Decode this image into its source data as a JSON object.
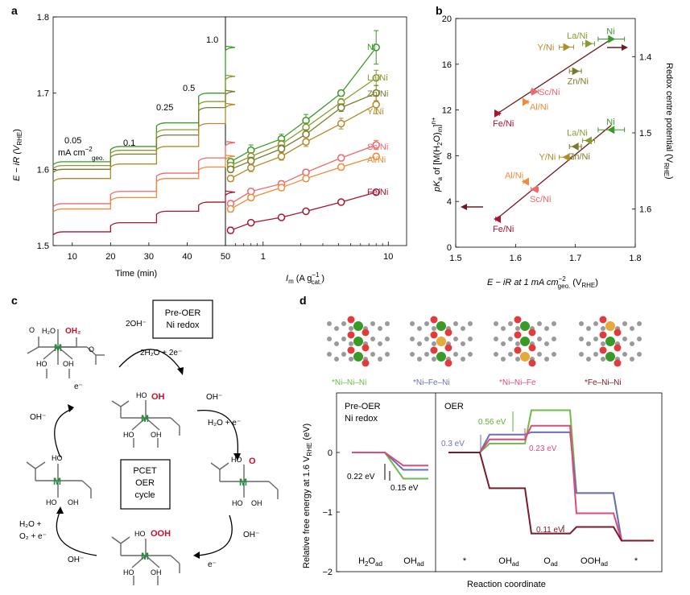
{
  "colors": {
    "Ni": "#3a9a28",
    "LaNi": "#8a9a30",
    "ZnNi": "#7a7a28",
    "YNi": "#b38a2a",
    "ScNi": "#f0686a",
    "AlNi": "#f28a3a",
    "FeNi": "#a81530",
    "dark": "#6e1a20",
    "NiNiNi": "#6dbb48",
    "NiFeNi": "#6a6fba",
    "NiNiFe": "#e0487a",
    "FeNiNi": "#7a1a28"
  },
  "chart_data": [
    {
      "panel": "a-left",
      "type": "line",
      "panel_label": "a",
      "xlabel": "Time (min)",
      "ylabel": "E − iR (V",
      "ylabel_sub": "RHE",
      "ylabel_close": ")",
      "xlim": [
        5,
        50
      ],
      "ylim": [
        1.5,
        1.8
      ],
      "xticks": [
        "10",
        "20",
        "30",
        "40",
        "50"
      ],
      "yticks": [
        "1.5",
        "1.6",
        "1.7",
        "1.8"
      ],
      "segment_times": [
        5,
        20,
        32,
        43,
        50
      ],
      "step_labels": [
        "0.05",
        "mA cm",
        "−2",
        "geo.",
        "0.1",
        "0.25",
        "0.5",
        "1.0"
      ],
      "series": [
        {
          "name": "Ni",
          "key": "Ni",
          "values": [
            1.61,
            1.63,
            1.661,
            1.7,
            1.76
          ]
        },
        {
          "name": "La/Ni",
          "key": "LaNi",
          "values": [
            1.605,
            1.625,
            1.652,
            1.689,
            1.722
          ]
        },
        {
          "name": "Zn/Ni",
          "key": "ZnNi",
          "values": [
            1.6,
            1.62,
            1.645,
            1.681,
            1.702
          ]
        },
        {
          "name": "Y/Ni",
          "key": "YNi",
          "values": [
            1.588,
            1.607,
            1.63,
            1.66,
            1.685
          ]
        },
        {
          "name": "Sc/Ni",
          "key": "ScNi",
          "values": [
            1.555,
            1.571,
            1.595,
            1.615,
            1.635
          ]
        },
        {
          "name": "Al/Ni",
          "key": "AlNi",
          "values": [
            1.548,
            1.563,
            1.588,
            1.603,
            1.617
          ]
        },
        {
          "name": "Fe/Ni",
          "key": "FeNi",
          "values": [
            1.518,
            1.53,
            1.545,
            1.557,
            1.57
          ]
        }
      ]
    },
    {
      "panel": "a-right",
      "type": "line",
      "xlabel": "I",
      "xlabel_sub": "m",
      "xlabel_rest": " (A g",
      "xlabel_sup": "−1",
      "xlabel_sub2": "cat.",
      "xlabel_close": ")",
      "xscale": "log",
      "xlim": [
        0.5,
        14
      ],
      "ylim": [
        1.5,
        1.8
      ],
      "xticks": [
        "1",
        "10"
      ],
      "x": [
        0.55,
        0.8,
        1.4,
        2.2,
        4.2,
        8.0
      ],
      "series": [
        {
          "name": "Ni",
          "key": "Ni",
          "values": [
            1.61,
            1.625,
            1.64,
            1.664,
            1.7,
            1.76
          ],
          "err": [
            0.004,
            0.007,
            0.006,
            0.008,
            0.004,
            0.022
          ]
        },
        {
          "name": "La/Ni",
          "key": "LaNi",
          "values": [
            1.605,
            1.617,
            1.633,
            1.655,
            1.688,
            1.72
          ],
          "err": [
            0.004,
            0.005,
            0.005,
            0.006,
            0.005,
            0.01
          ]
        },
        {
          "name": "Zn/Ni",
          "key": "ZnNi",
          "values": [
            1.6,
            1.611,
            1.627,
            1.646,
            1.681,
            1.7
          ],
          "err": [
            0.004,
            0.005,
            0.005,
            0.006,
            0.005,
            0.01
          ]
        },
        {
          "name": "Y/Ni",
          "key": "YNi",
          "values": [
            1.588,
            1.602,
            1.617,
            1.636,
            1.66,
            1.685
          ],
          "err": [
            0.004,
            0.005,
            0.005,
            0.006,
            0.007,
            0.012
          ]
        },
        {
          "name": "Sc/Ni",
          "key": "ScNi",
          "values": [
            1.555,
            1.571,
            1.581,
            1.596,
            1.615,
            1.632
          ],
          "err": [
            0.004,
            0.004,
            0.004,
            0.004,
            0.004,
            0.006
          ]
        },
        {
          "name": "Al/Ni",
          "key": "AlNi",
          "values": [
            1.548,
            1.563,
            1.576,
            1.588,
            1.603,
            1.617
          ],
          "err": [
            0.004,
            0.004,
            0.004,
            0.004,
            0.004,
            0.004
          ]
        },
        {
          "name": "Fe/Ni",
          "key": "FeNi",
          "values": [
            1.52,
            1.53,
            1.537,
            1.545,
            1.557,
            1.57
          ],
          "err": [
            0.004,
            0.003,
            0.003,
            0.003,
            0.003,
            0.003
          ]
        }
      ]
    },
    {
      "panel": "b",
      "type": "scatter",
      "panel_label": "b",
      "xlabel": "E − iR at 1 mA cm",
      "xlabel_sup": "−2",
      "xlabel_sub": "geo.",
      "xlabel_rest": " (V",
      "xlabel_sub2": "RHE",
      "xlabel_close": ")",
      "ylabel_left": "pK",
      "ylabel_left_sub": "a",
      "ylabel_left_rest": " of [M(H",
      "ylabel_left_sub2": "2",
      "ylabel_left_rest2": "O)",
      "ylabel_left_sub3": "m",
      "ylabel_left_sup": "n+",
      "ylabel_left_close": "]",
      "ylabel_right": "Redox centre potential (V",
      "ylabel_right_sub": "RHE",
      "ylabel_right_close": ")",
      "xlim": [
        1.5,
        1.8
      ],
      "ylim_left": [
        0,
        20
      ],
      "ylim_right": [
        1.65,
        1.35
      ],
      "xticks": [
        "1.5",
        "1.6",
        "1.7",
        "1.8"
      ],
      "yticks_left": [
        "0",
        "4",
        "8",
        "12",
        "16",
        "20"
      ],
      "yticks_right": [
        "1.4",
        "1.5",
        "1.6"
      ],
      "pka_points": [
        {
          "label": "Ni",
          "key": "Ni",
          "x": 1.76,
          "y": 18.2,
          "xerr": 0.022
        },
        {
          "label": "La/Ni",
          "key": "LaNi",
          "x": 1.722,
          "y": 17.8,
          "xerr": 0.01
        },
        {
          "label": "Y/Ni",
          "key": "YNi",
          "x": 1.685,
          "y": 17.5,
          "xerr": 0.012
        },
        {
          "label": "Zn/Ni",
          "key": "ZnNi",
          "x": 1.7,
          "y": 15.4,
          "xerr": 0.01
        },
        {
          "label": "Sc/Ni",
          "key": "ScNi",
          "x": 1.632,
          "y": 13.6,
          "xerr": 0.006
        },
        {
          "label": "Al/Ni",
          "key": "AlNi",
          "x": 1.617,
          "y": 12.7,
          "xerr": 0.004
        },
        {
          "label": "Fe/Ni",
          "key": "FeNi",
          "x": 1.57,
          "y": 11.7,
          "xerr": 0.003
        }
      ],
      "redox_points": [
        {
          "label": "Ni",
          "key": "Ni",
          "x": 1.76,
          "y": 1.496,
          "xerr": 0.022
        },
        {
          "label": "La/Ni",
          "key": "LaNi",
          "x": 1.722,
          "y": 1.51,
          "xerr": 0.01
        },
        {
          "label": "Y/Ni",
          "key": "YNi",
          "x": 1.685,
          "y": 1.532,
          "xerr": 0.012
        },
        {
          "label": "Zn/Ni",
          "key": "ZnNi",
          "x": 1.7,
          "y": 1.518,
          "xerr": 0.01
        },
        {
          "label": "Al/Ni",
          "key": "AlNi",
          "x": 1.617,
          "y": 1.564,
          "xerr": 0.004
        },
        {
          "label": "Sc/Ni",
          "key": "ScNi",
          "x": 1.632,
          "y": 1.574,
          "xerr": 0.006
        },
        {
          "label": "Fe/Ni",
          "key": "FeNi",
          "x": 1.57,
          "y": 1.613,
          "xerr": 0.003
        }
      ],
      "pka_fit": [
        [
          1.57,
          11.7
        ],
        [
          1.76,
          18.2
        ]
      ],
      "redox_fit": [
        [
          1.57,
          1.612
        ],
        [
          1.76,
          1.49
        ]
      ]
    },
    {
      "panel": "d",
      "type": "line",
      "panel_label": "d",
      "xlabel": "Reaction coordinate",
      "ylabel": "Relative free energy at 1.6 V",
      "ylabel_sub": "RHE",
      "ylabel_rest": " (eV)",
      "ylim": [
        -2,
        1
      ],
      "yticks": [
        "−2",
        "−1",
        "0"
      ],
      "left_title": [
        "Pre-OER",
        "Ni redox"
      ],
      "right_title": "OER",
      "left_categories": [
        {
          "t": "H",
          "s": "2",
          "t2": "O",
          "s2": "ad"
        },
        {
          "t": "OH",
          "s": "ad"
        }
      ],
      "right_categories": [
        {
          "t": "*"
        },
        {
          "t": "OH",
          "s": "ad"
        },
        {
          "t": "O",
          "s": "ad"
        },
        {
          "t": "OOH",
          "s": "ad"
        },
        {
          "t": "*"
        }
      ],
      "legend": [
        "*Ni–Ni–Ni",
        "*Ni–Fe–Ni",
        "*Ni–Ni–Fe",
        "*Fe–Ni–Ni"
      ],
      "legend_keys": [
        "NiNiNi",
        "NiFeNi",
        "NiNiFe",
        "FeNiNi"
      ],
      "left_series": [
        {
          "name": "*Ni–Ni–Ni",
          "key": "NiNiNi",
          "values": [
            0.0,
            -0.44
          ]
        },
        {
          "name": "*Ni–Fe–Ni",
          "key": "NiFeNi",
          "values": [
            0.0,
            -0.29
          ]
        },
        {
          "name": "*Ni–Ni–Fe",
          "key": "NiNiFe",
          "values": [
            0.0,
            -0.22
          ]
        }
      ],
      "right_series": [
        {
          "name": "*Ni–Ni–Ni",
          "key": "NiNiNi",
          "values": [
            0.0,
            0.15,
            0.71,
            -0.68,
            -1.48
          ]
        },
        {
          "name": "*Ni–Fe–Ni",
          "key": "NiFeNi",
          "values": [
            0.0,
            0.3,
            0.34,
            -0.68,
            -1.48
          ]
        },
        {
          "name": "*Ni–Ni–Fe",
          "key": "NiNiFe",
          "values": [
            0.0,
            0.22,
            0.45,
            -1.02,
            -1.48
          ]
        },
        {
          "name": "*Fe–Ni–Ni",
          "key": "FeNiNi",
          "values": [
            0.0,
            -0.6,
            -1.36,
            -1.25,
            -1.48
          ]
        }
      ],
      "annotations": [
        "0.22 eV",
        "0.15 eV",
        "0.56 eV",
        "0.3 eV",
        "0.23 eV",
        "0.11 eV"
      ]
    }
  ],
  "panel_c": {
    "panel_label": "c",
    "box_preoer": [
      "Pre-OER",
      "Ni redox"
    ],
    "box_pcet": [
      "PCET",
      "OER",
      "cycle"
    ],
    "metal": "M",
    "ligands": {
      "h2o": "H₂O",
      "oh2": "OH₂",
      "oh": "OH",
      "ho": "HO",
      "o": "O",
      "ooh": "OOH"
    },
    "species": [
      "2OH⁻",
      "2H₂O + 2e⁻",
      "e⁻",
      "OH⁻",
      "OH⁻",
      "H₂O + e⁻",
      "H₂O +",
      "O₂ + e⁻",
      "OH⁻",
      "OH⁻",
      "e⁻"
    ]
  }
}
